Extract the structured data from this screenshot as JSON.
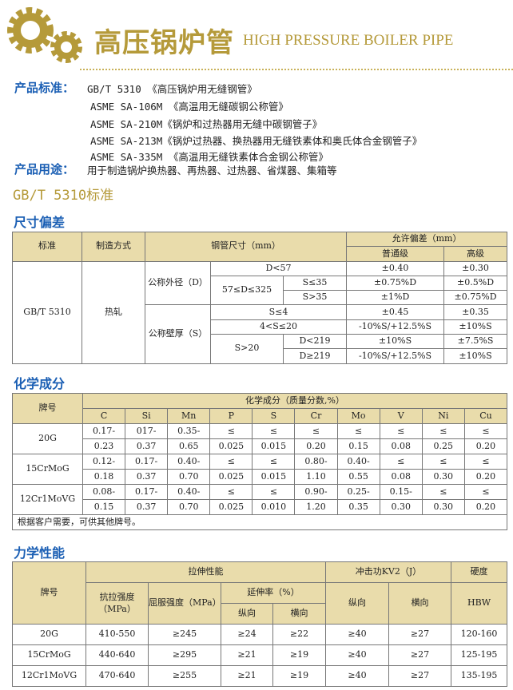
{
  "header": {
    "title_cn": "高压锅炉管",
    "title_en": "HIGH PRESSURE BOILER PIPE",
    "brand_color": "#b59a3a",
    "accent_blue": "#1b5fb4"
  },
  "intro": {
    "standards_label": "产品标准：",
    "standards": [
      "GB/T 5310 《高压锅炉用无缝钢管》",
      "ASME SA-106M 《高温用无缝碳钢公称管》",
      "ASME SA-210M《锅炉和过热器用无缝中碳钢管子》",
      "ASME SA-213M《锅炉过热器、换热器用无缝铁素体和奥氏体合金钢管子》",
      "ASME SA-335M 《高温用无缝铁素体合金钢公称管》"
    ],
    "usage_label": "产品用途：",
    "usage": "用于制造锅炉换热器、再热器、过热器、省煤器、集箱等"
  },
  "gb_title": "GB/T 5310标准",
  "dim": {
    "title": "尺寸偏差",
    "h": {
      "std": "标准",
      "method": "制造方式",
      "size": "钢管尺寸（mm）",
      "tol": "允许偏差（mm）",
      "normal": "普通级",
      "high": "高级"
    },
    "std": "GB/T 5310",
    "method": "热轧",
    "od": "公称外径（D）",
    "wt": "公称壁厚（S）",
    "r": [
      {
        "a": "D<57",
        "n": "±0.40",
        "h": "±0.30"
      },
      {
        "a": "57≤D≤325",
        "b": "S≤35",
        "n": "±0.75%D",
        "h": "±0.5%D"
      },
      {
        "b": "S>35",
        "n": "±1%D",
        "h": "±0.75%D"
      },
      {
        "a": "S≤4",
        "n": "±0.45",
        "h": "±0.35"
      },
      {
        "a": "4<S≤20",
        "n": "-10%S/+12.5%S",
        "h": "±10%S"
      },
      {
        "a": "S>20",
        "b": "D<219",
        "n": "±10%S",
        "h": "±7.5%S"
      },
      {
        "b": "D≥219",
        "n": "-10%S/+12.5%S",
        "h": "±10%S"
      }
    ]
  },
  "chem": {
    "title": "化学成分",
    "grade": "牌号",
    "group": "化学成分（质量分数,%）",
    "elements": [
      "C",
      "Si",
      "Mn",
      "P",
      "S",
      "Cr",
      "Mo",
      "V",
      "Ni",
      "Cu"
    ],
    "rows": [
      {
        "grade": "20G",
        "v": [
          [
            "0.17-",
            "0.23"
          ],
          [
            "017-",
            "0.37"
          ],
          [
            "0.35-",
            "0.65"
          ],
          [
            "≤",
            "0.025"
          ],
          [
            "≤",
            "0.015"
          ],
          [
            "≤",
            "0.20"
          ],
          [
            "≤",
            "0.15"
          ],
          [
            "≤",
            "0.08"
          ],
          [
            "≤",
            "0.25"
          ],
          [
            "≤",
            "0.20"
          ]
        ]
      },
      {
        "grade": "15CrMoG",
        "v": [
          [
            "0.12-",
            "0.18"
          ],
          [
            "0.17-",
            "0.37"
          ],
          [
            "0.40-",
            "0.70"
          ],
          [
            "≤",
            "0.025"
          ],
          [
            "≤",
            "0.015"
          ],
          [
            "0.80-",
            "1.10"
          ],
          [
            "0.40-",
            "0.55"
          ],
          [
            "≤",
            "0.08"
          ],
          [
            "≤",
            "0.30"
          ],
          [
            "≤",
            "0.20"
          ]
        ]
      },
      {
        "grade": "12Cr1MoVG",
        "v": [
          [
            "0.08-",
            "0.15"
          ],
          [
            "0.17-",
            "0.37"
          ],
          [
            "0.40-",
            "0.70"
          ],
          [
            "≤",
            "0.025"
          ],
          [
            "≤",
            "0.010"
          ],
          [
            "0.90-",
            "1.20"
          ],
          [
            "0.25-",
            "0.35"
          ],
          [
            "0.15-",
            "0.30"
          ],
          [
            "≤",
            "0.30"
          ],
          [
            "≤",
            "0.20"
          ]
        ]
      }
    ],
    "note": "根据客户需要，可供其他牌号。"
  },
  "mech": {
    "title": "力学性能",
    "h": {
      "grade": "牌号",
      "tensile": "拉伸性能",
      "impact": "冲击功KV2（J）",
      "hard": "硬度",
      "ts": "抗拉强度（MPa）",
      "ys": "屈服强度（MPa）",
      "el": "延伸率（%）",
      "long": "纵向",
      "trans": "横向",
      "ilong": "纵向",
      "itrans": "横向",
      "hbw": "HBW"
    },
    "rows": [
      [
        "20G",
        "410-550",
        "≥245",
        "≥24",
        "≥22",
        "≥40",
        "≥27",
        "120-160"
      ],
      [
        "15CrMoG",
        "440-640",
        "≥295",
        "≥21",
        "≥19",
        "≥40",
        "≥27",
        "125-195"
      ],
      [
        "12Cr1MoVG",
        "470-640",
        "≥255",
        "≥21",
        "≥19",
        "≥40",
        "≥27",
        "135-195"
      ]
    ]
  }
}
